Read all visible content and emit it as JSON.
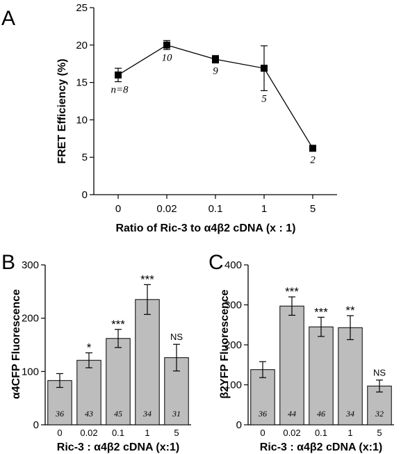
{
  "colors": {
    "bar_fill": "#bdbdbd",
    "ink": "#000000"
  },
  "chart_data": [
    {
      "panel": "A",
      "type": "line",
      "xlabel": "Ratio of Ric-3 to α4β2 cDNA (x : 1)",
      "ylabel": "FRET Efficiency (%)",
      "categories": [
        "0",
        "0.02",
        "0.1",
        "1",
        "5"
      ],
      "values": [
        16.0,
        20.0,
        18.1,
        16.9,
        6.2
      ],
      "errors": [
        0.9,
        0.6,
        0.5,
        3.0,
        0.2
      ],
      "n_labels": [
        "n=8",
        "10",
        "9",
        "5",
        "2"
      ],
      "ylim": [
        0,
        25
      ],
      "yticks": [
        "0",
        "5",
        "10",
        "15",
        "20",
        "25"
      ],
      "grid": false,
      "marker": "square"
    },
    {
      "panel": "B",
      "type": "bar",
      "xlabel": "Ric-3 : α4β2 cDNA (x:1)",
      "ylabel": "α4CFP Fluorescence",
      "categories": [
        "0",
        "0.02",
        "0.1",
        "1",
        "5"
      ],
      "values": [
        83,
        121,
        162,
        235,
        126
      ],
      "errors": [
        13,
        14,
        17,
        28,
        25
      ],
      "n_labels": [
        "36",
        "43",
        "45",
        "34",
        "31"
      ],
      "significance": [
        "",
        "*",
        "***",
        "***",
        "NS"
      ],
      "ylim": [
        0,
        300
      ],
      "yticks": [
        "0",
        "100",
        "200",
        "300"
      ],
      "grid": false
    },
    {
      "panel": "C",
      "type": "bar",
      "xlabel": "Ric-3 : α4β2 cDNA (x:1)",
      "ylabel": "β2YFP Fluorescence",
      "categories": [
        "0",
        "0.02",
        "0.1",
        "1",
        "5"
      ],
      "values": [
        138,
        297,
        245,
        243,
        97
      ],
      "errors": [
        20,
        23,
        24,
        30,
        15
      ],
      "n_labels": [
        "36",
        "44",
        "46",
        "34",
        "32"
      ],
      "significance": [
        "",
        "***",
        "***",
        "**",
        "NS"
      ],
      "ylim": [
        0,
        400
      ],
      "yticks": [
        "0",
        "100",
        "200",
        "300",
        "400"
      ],
      "grid": false
    }
  ]
}
